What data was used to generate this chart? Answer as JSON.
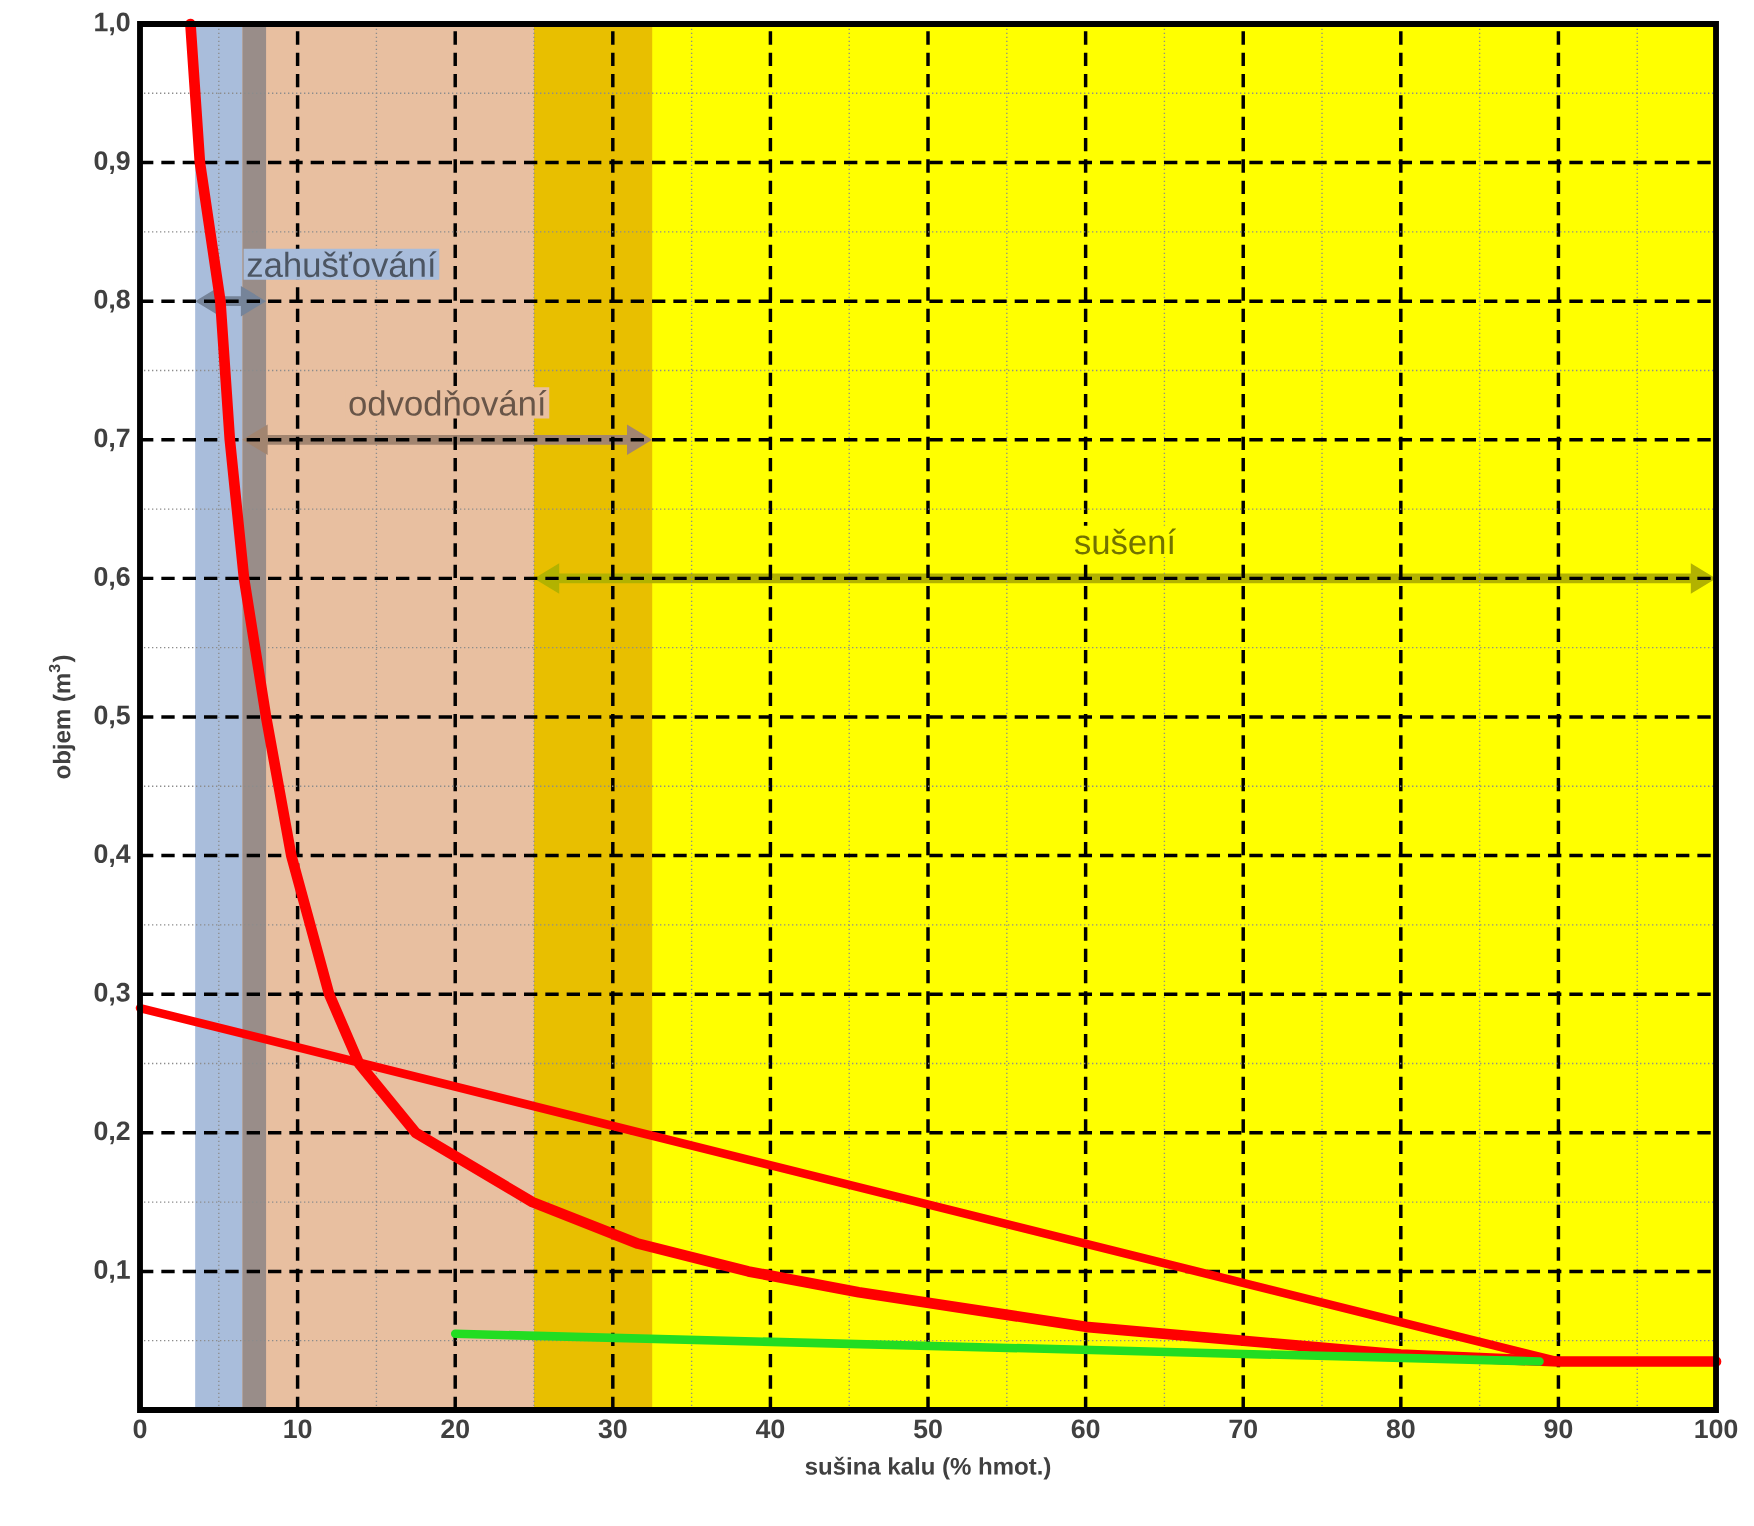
{
  "chart_data": {
    "type": "line",
    "xlabel": "sušina kalu (% hmot.)",
    "ylabel": "objem (m$^{3}$)",
    "xlim": [
      0,
      100
    ],
    "ylim": [
      0,
      1.0
    ],
    "xticks": [
      0,
      {
        "value": 5,
        "label": null
      },
      10,
      {
        "value": 15,
        "label": null
      },
      20,
      {
        "value": 25,
        "label": null
      },
      30,
      {
        "value": 35,
        "label": null
      },
      40,
      {
        "value": 45,
        "label": null
      },
      50,
      {
        "value": 55,
        "label": null
      },
      60,
      {
        "value": 65,
        "label": null
      },
      70,
      {
        "value": 75,
        "label": null
      },
      80,
      {
        "value": 85,
        "label": null
      },
      90,
      {
        "value": 95,
        "label": null
      },
      100
    ],
    "yticks": [
      {
        "value": 0.05,
        "label": null
      },
      {
        "value": 0.1,
        "label": "0,1"
      },
      {
        "value": 0.15,
        "label": null
      },
      {
        "value": 0.2,
        "label": "0,2"
      },
      {
        "value": 0.25,
        "label": null
      },
      {
        "value": 0.3,
        "label": "0,3"
      },
      {
        "value": 0.35,
        "label": null
      },
      {
        "value": 0.4,
        "label": "0,4"
      },
      {
        "value": 0.45,
        "label": null
      },
      {
        "value": 0.5,
        "label": "0,5"
      },
      {
        "value": 0.55,
        "label": null
      },
      {
        "value": 0.6,
        "label": "0,6"
      },
      {
        "value": 0.65,
        "label": null
      },
      {
        "value": 0.7,
        "label": "0,7"
      },
      {
        "value": 0.75,
        "label": null
      },
      {
        "value": 0.8,
        "label": "0,8"
      },
      {
        "value": 0.85,
        "label": null
      },
      {
        "value": 0.9,
        "label": "0,9"
      },
      {
        "value": 0.95,
        "label": null
      },
      {
        "value": 1.0,
        "label": "1,0"
      }
    ],
    "grid": true,
    "marker": "none",
    "bands": [
      {
        "axis": "x",
        "from": 3.5,
        "to": 8,
        "label": "zahušťování",
        "color": "#a9bddb"
      },
      {
        "axis": "x",
        "from": 6.5,
        "to": 32.5,
        "label": "odvodňování",
        "color": "#e8bfa0"
      },
      {
        "axis": "x",
        "from": 25,
        "to": 100,
        "label": "sušení",
        "color": "#ffff00"
      },
      {
        "axis": "x",
        "from": 6.5,
        "to": 8,
        "color": "#998d89"
      },
      {
        "axis": "x",
        "from": 25,
        "to": 32.5,
        "color": "#e8bf00"
      }
    ],
    "series": [
      {
        "color": "#ff0000",
        "x": [
          3.2,
          3.8,
          5.1,
          5.7,
          6.6,
          8.0,
          9.6,
          12.0,
          13.9,
          17.5,
          24.9,
          31.6,
          38.6,
          45.6,
          60,
          70,
          80,
          90,
          100
        ],
        "values": [
          1.0,
          0.9,
          0.8,
          0.7,
          0.6,
          0.5,
          0.4,
          0.3,
          0.25,
          0.2,
          0.15,
          0.12,
          0.1,
          0.085,
          0.06,
          0.05,
          0.04,
          0.035,
          0.035
        ]
      },
      {
        "color": "#ff0000",
        "x": [
          0,
          90
        ],
        "values": [
          0.29,
          0.035
        ]
      },
      {
        "color": "#22dd22",
        "x": [
          20,
          88.8
        ],
        "values": [
          0.055,
          0.035
        ]
      }
    ]
  }
}
